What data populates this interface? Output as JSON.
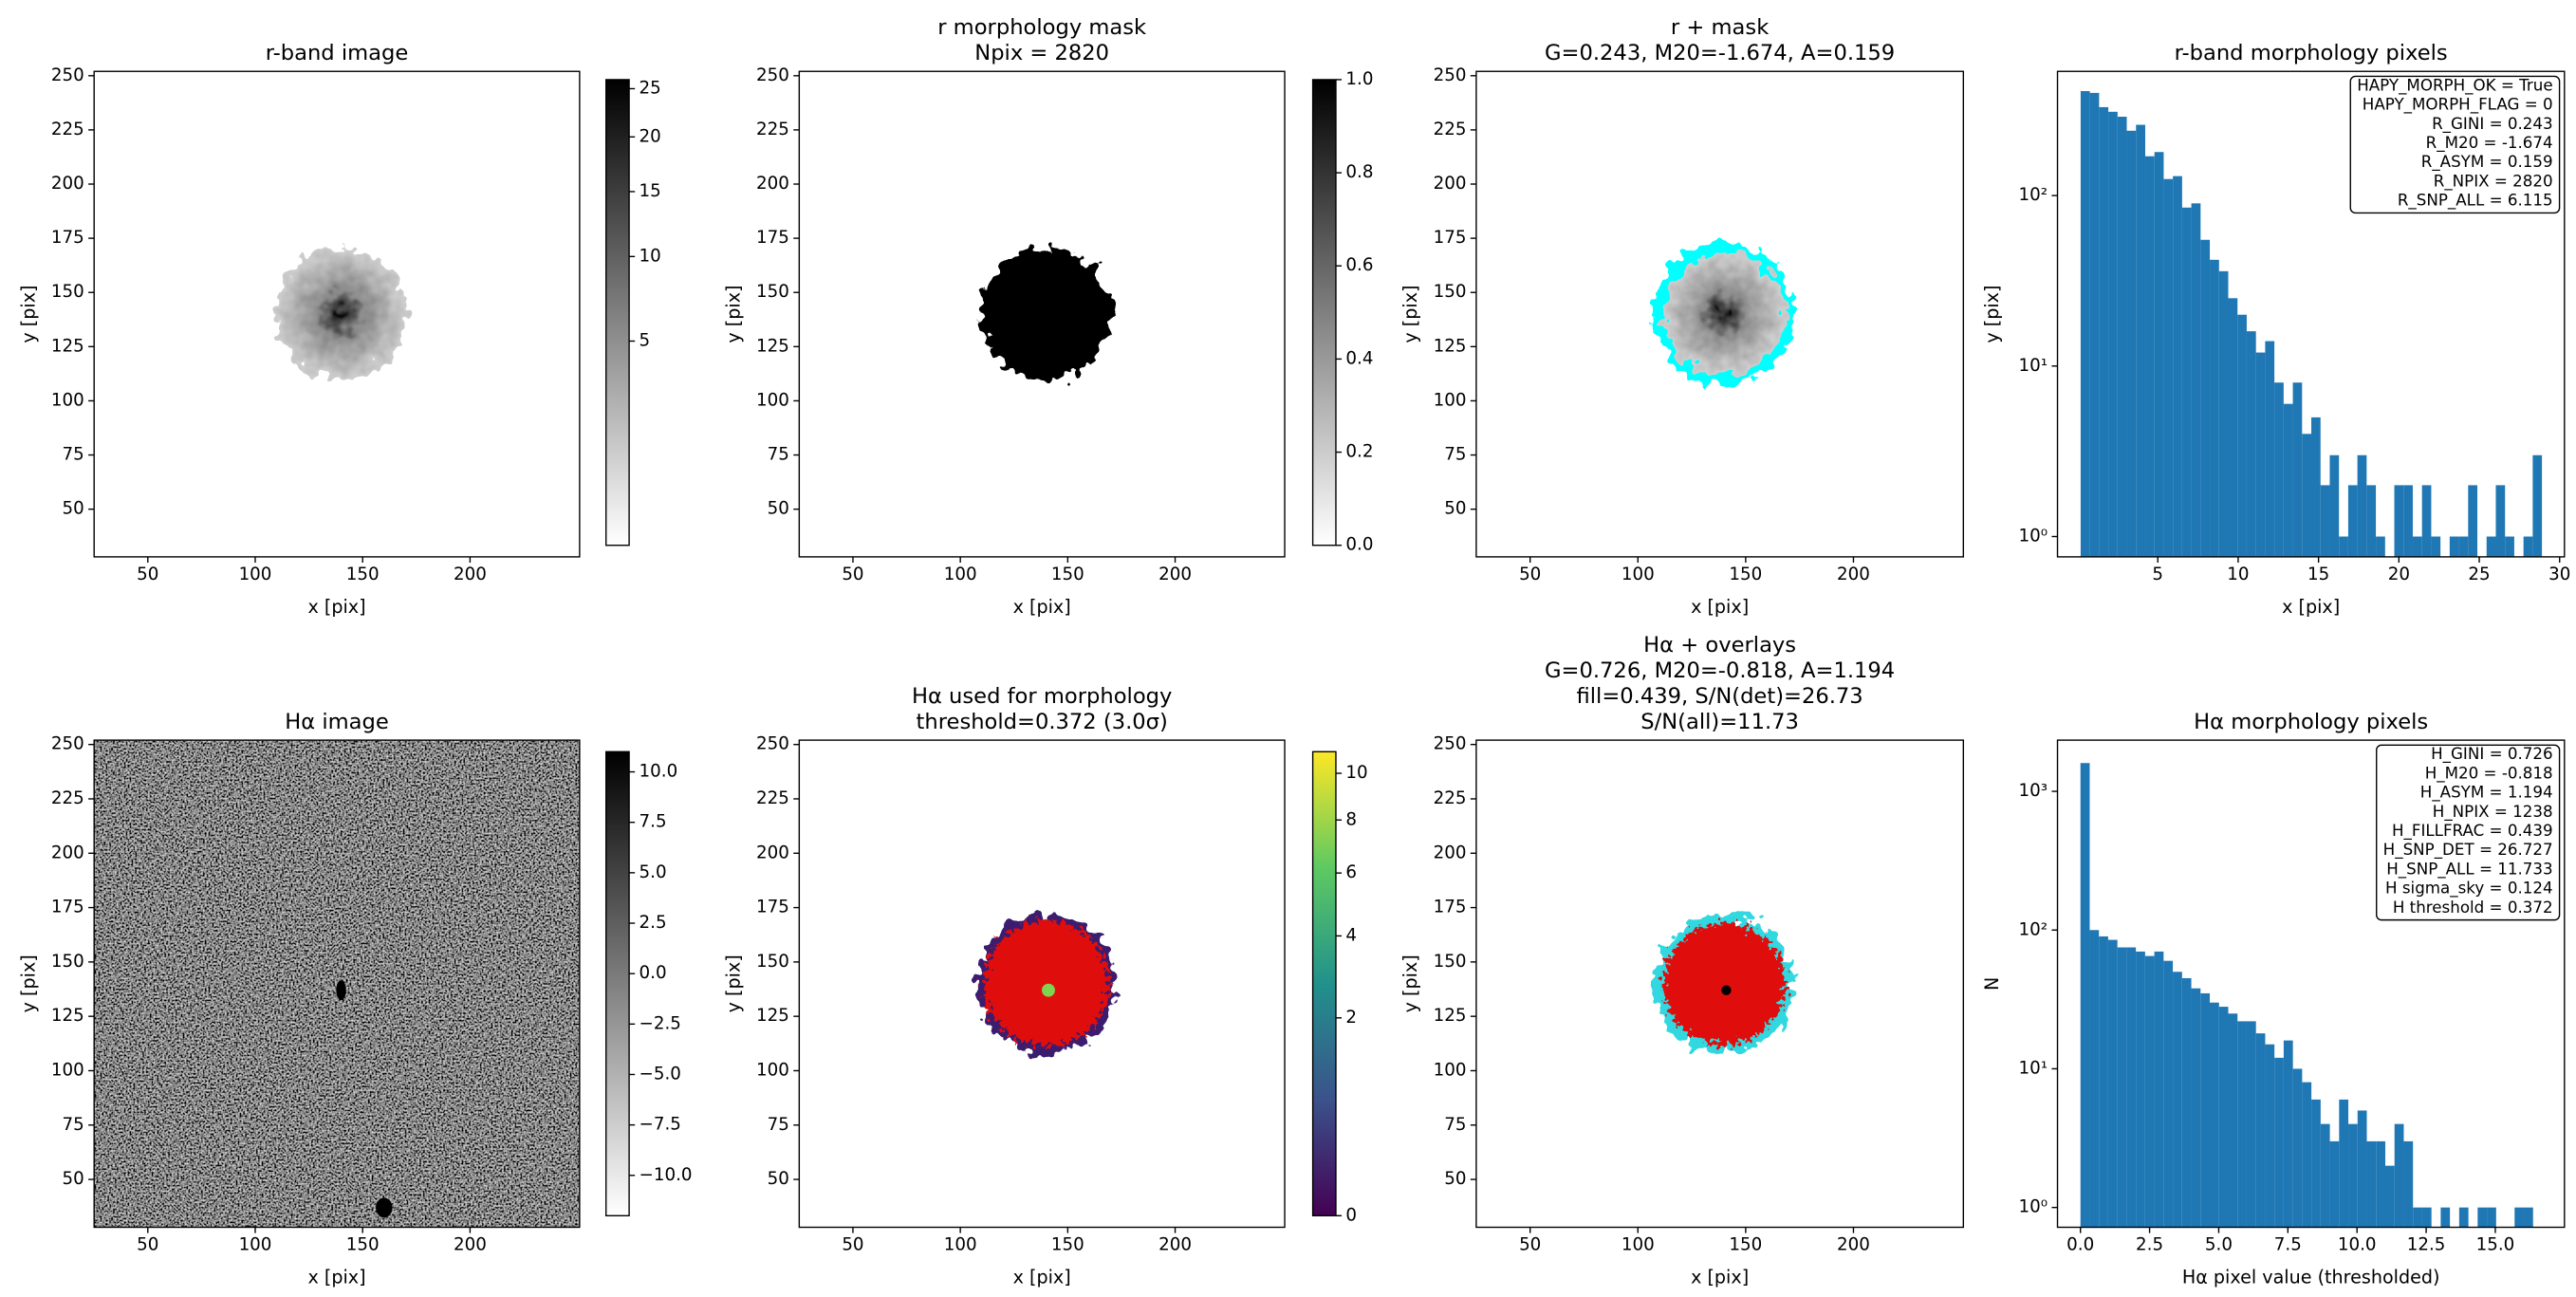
{
  "chart_data": [
    {
      "type": "image",
      "title": [
        "r-band image"
      ],
      "xlabel": "x [pix]",
      "ylabel": "y [pix]",
      "xlim": [
        25,
        251
      ],
      "ylim": [
        28,
        252
      ],
      "xticks": [
        50,
        100,
        150,
        200
      ],
      "yticks": [
        50,
        75,
        100,
        125,
        150,
        175,
        200,
        225,
        250
      ],
      "colorbar": {
        "cmap": "gray_r",
        "scale": "sqrt",
        "lim": [
          0,
          26
        ],
        "ticks": [
          5,
          10,
          15,
          20,
          25
        ]
      }
    },
    {
      "type": "image",
      "title": [
        "r morphology mask",
        "Npix = 2820"
      ],
      "xlabel": "x [pix]",
      "ylabel": "y [pix]",
      "xlim": [
        25,
        251
      ],
      "ylim": [
        28,
        252
      ],
      "xticks": [
        50,
        100,
        150,
        200
      ],
      "yticks": [
        50,
        75,
        100,
        125,
        150,
        175,
        200,
        225,
        250
      ],
      "colorbar": {
        "cmap": "gray_r",
        "scale": "linear",
        "lim": [
          0,
          1
        ],
        "ticks": [
          {
            "value": 0,
            "label": "0.0"
          },
          0.2,
          0.4,
          0.6,
          0.8,
          {
            "value": 1,
            "label": "1.0"
          }
        ]
      }
    },
    {
      "type": "image",
      "title": [
        "r + mask",
        "G=0.243, M20=-1.674, A=0.159"
      ],
      "xlabel": "x [pix]",
      "ylabel": "y [pix]",
      "xlim": [
        25,
        251
      ],
      "ylim": [
        28,
        252
      ],
      "xticks": [
        50,
        100,
        150,
        200
      ],
      "yticks": [
        50,
        75,
        100,
        125,
        150,
        175,
        200,
        225,
        250
      ]
    },
    {
      "type": "histogram",
      "title": [
        "r-band morphology pixels"
      ],
      "xlabel": "x [pix]",
      "ylabel": "y [pix]",
      "color": "#1f77b4",
      "log": true,
      "xlim": [
        -1.24,
        30.3
      ],
      "ylim": [
        0.76,
        535
      ],
      "xticks": [
        5,
        10,
        15,
        20,
        25,
        30
      ],
      "yticks": [
        {
          "value": 1,
          "label": "10⁰"
        },
        {
          "value": 10,
          "label": "10¹"
        },
        {
          "value": 100,
          "label": "10²"
        }
      ],
      "bins": [
        0.2,
        0.774,
        1.348,
        1.922,
        2.496,
        3.07,
        3.644,
        4.218,
        4.792,
        5.366,
        5.94,
        6.514,
        7.088,
        7.662,
        8.236,
        8.81,
        9.384,
        9.958,
        10.532,
        11.106,
        11.68,
        12.254,
        12.828,
        13.402,
        13.976,
        14.55,
        15.124,
        15.698,
        16.272,
        16.846,
        17.42,
        17.994,
        18.568,
        19.142,
        19.716,
        20.29,
        20.864,
        21.438,
        22.012,
        22.586,
        23.16,
        23.734,
        24.308,
        24.882,
        25.456,
        26.03,
        26.604,
        27.178,
        27.752,
        28.326,
        28.9
      ],
      "values": [
        410,
        400,
        330,
        310,
        290,
        240,
        260,
        170,
        180,
        125,
        130,
        85,
        90,
        55,
        42,
        36,
        25,
        20,
        16,
        12,
        14,
        8,
        6,
        8,
        4,
        5,
        2,
        3,
        1,
        2,
        3,
        2,
        1,
        0,
        2,
        2,
        1,
        2,
        1,
        0,
        1,
        1,
        2,
        0,
        1,
        2,
        1,
        0,
        1,
        3
      ],
      "annotation": [
        "HAPY_MORPH_OK = True",
        "HAPY_MORPH_FLAG = 0",
        "R_GINI = 0.243",
        "R_M20 = -1.674",
        "R_ASYM = 0.159",
        "R_NPIX = 2820",
        "R_SNP_ALL = 6.115"
      ]
    },
    {
      "type": "image",
      "title": [
        "Hα image"
      ],
      "xlabel": "x [pix]",
      "ylabel": "y [pix]",
      "xlim": [
        25,
        251
      ],
      "ylim": [
        28,
        252
      ],
      "xticks": [
        50,
        100,
        150,
        200
      ],
      "yticks": [
        50,
        75,
        100,
        125,
        150,
        175,
        200,
        225,
        250
      ],
      "colorbar": {
        "cmap": "gray_r",
        "scale": "linear",
        "lim": [
          -12,
          11
        ],
        "ticks": [
          {
            "value": -10,
            "label": "−10.0"
          },
          {
            "value": -7.5,
            "label": "−7.5"
          },
          {
            "value": -5,
            "label": "−5.0"
          },
          {
            "value": -2.5,
            "label": "−2.5"
          },
          {
            "value": 0,
            "label": "0.0"
          },
          2.5,
          {
            "value": 5,
            "label": "5.0"
          },
          7.5,
          {
            "value": 10,
            "label": "10.0"
          }
        ]
      }
    },
    {
      "type": "image",
      "title": [
        "Hα used for morphology",
        "threshold=0.372 (3.0σ)"
      ],
      "xlabel": "x [pix]",
      "ylabel": "y [pix]",
      "xlim": [
        25,
        251
      ],
      "ylim": [
        28,
        252
      ],
      "xticks": [
        50,
        100,
        150,
        200
      ],
      "yticks": [
        50,
        75,
        100,
        125,
        150,
        175,
        200,
        225,
        250
      ],
      "colorbar": {
        "cmap": "viridis",
        "scale": "sqrt",
        "lim": [
          0,
          11
        ],
        "ticks": [
          0,
          2,
          4,
          6,
          8,
          10
        ]
      }
    },
    {
      "type": "image",
      "title": [
        "Hα + overlays",
        "G=0.726, M20=-0.818, A=1.194",
        "fill=0.439, S/N(det)=26.73",
        "S/N(all)=11.73"
      ],
      "xlabel": "x [pix]",
      "ylabel": "y [pix]",
      "xlim": [
        25,
        251
      ],
      "ylim": [
        28,
        252
      ],
      "xticks": [
        50,
        100,
        150,
        200
      ],
      "yticks": [
        50,
        75,
        100,
        125,
        150,
        175,
        200,
        225,
        250
      ]
    },
    {
      "type": "histogram",
      "title": [
        "Hα morphology pixels"
      ],
      "xlabel": "Hα pixel value (thresholded)",
      "ylabel": "N",
      "color": "#1f77b4",
      "log": true,
      "xlim": [
        -0.83,
        17.5
      ],
      "ylim": [
        0.72,
        2340
      ],
      "xticks": [
        {
          "value": 0,
          "label": "0.0"
        },
        2.5,
        {
          "value": 5,
          "label": "5.0"
        },
        7.5,
        {
          "value": 10,
          "label": "10.0"
        },
        12.5,
        {
          "value": 15,
          "label": "15.0"
        }
      ],
      "yticks": [
        {
          "value": 1,
          "label": "10⁰"
        },
        {
          "value": 10,
          "label": "10¹"
        },
        {
          "value": 100,
          "label": "10²"
        },
        {
          "value": 1000,
          "label": "10³"
        }
      ],
      "bins": [
        0,
        0.334,
        0.668,
        1.002,
        1.336,
        1.67,
        2.004,
        2.338,
        2.672,
        3.006,
        3.34,
        3.674,
        4.008,
        4.342,
        4.676,
        5.01,
        5.344,
        5.678,
        6.012,
        6.346,
        6.68,
        7.014,
        7.348,
        7.682,
        8.016,
        8.35,
        8.684,
        9.018,
        9.352,
        9.686,
        10.02,
        10.354,
        10.688,
        11.022,
        11.356,
        11.69,
        12.024,
        12.358,
        12.692,
        13.026,
        13.36,
        13.694,
        14.028,
        14.362,
        14.696,
        15.03,
        15.364,
        15.698,
        16.032,
        16.366,
        16.7
      ],
      "values": [
        1600,
        100,
        90,
        85,
        75,
        75,
        70,
        65,
        70,
        60,
        50,
        45,
        38,
        35,
        30,
        28,
        25,
        22,
        22,
        18,
        15,
        12,
        16,
        10,
        8,
        6,
        4,
        3,
        6,
        4,
        5,
        3,
        3,
        2,
        4,
        3,
        1,
        1,
        0,
        1,
        0,
        1,
        0,
        1,
        1,
        0,
        0,
        1,
        1,
        0
      ],
      "annotation": [
        "H_GINI = 0.726",
        "H_M20 = -0.818",
        "H_ASYM = 1.194",
        "H_NPIX = 1238",
        "H_FILLFRAC = 0.439",
        "H_SNP_DET = 26.727",
        "H_SNP_ALL = 11.733",
        "H sigma_sky = 0.124",
        "H threshold = 0.372"
      ]
    }
  ]
}
